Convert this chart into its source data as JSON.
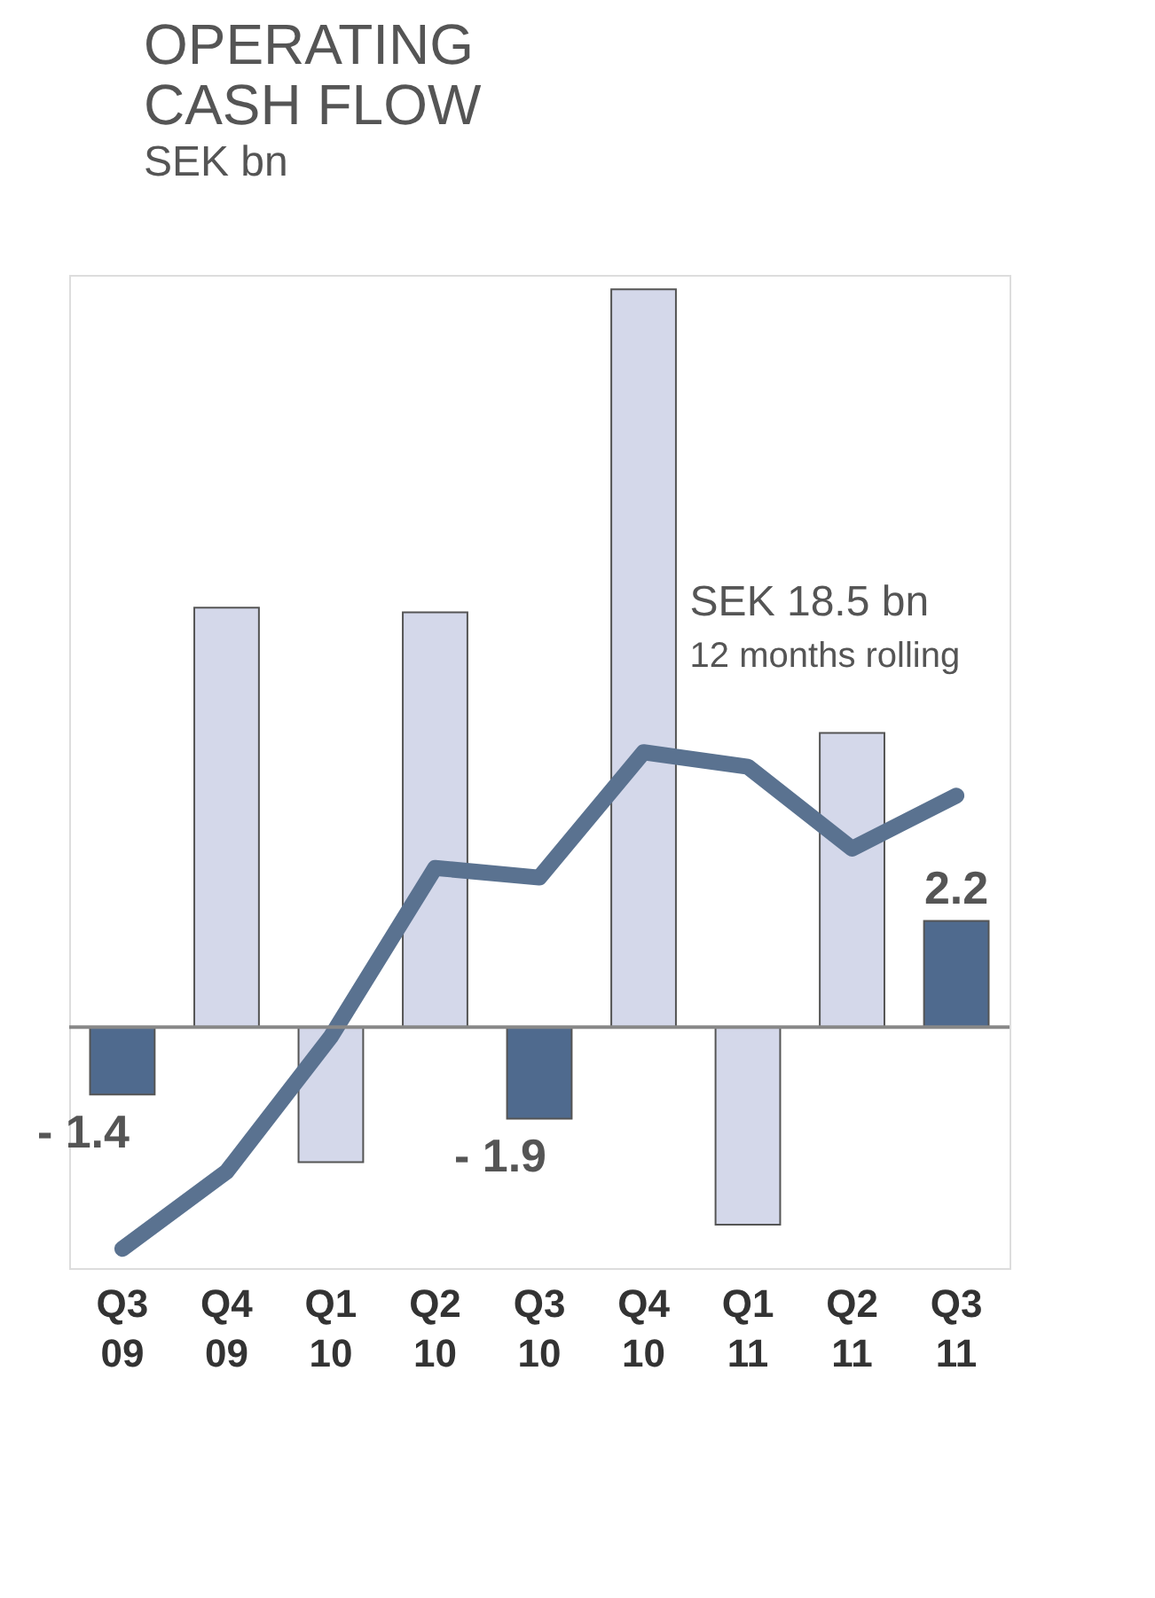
{
  "chart_data": {
    "type": "bar",
    "title": "OPERATING CASH FLOW",
    "subtitle": "SEK bn",
    "categories": [
      "Q3 09",
      "Q4 09",
      "Q1 10",
      "Q2 10",
      "Q3 10",
      "Q4 10",
      "Q1 11",
      "Q2 11",
      "Q3 11"
    ],
    "series": [
      {
        "values": [
          -1.4,
          8.7,
          -2.8,
          8.6,
          -1.9,
          15.3,
          -4.1,
          6.1,
          2.2
        ],
        "colors": [
          "#4f6a8e",
          "#d4d8ea",
          "#d4d8ea",
          "#d4d8ea",
          "#4f6a8e",
          "#d4d8ea",
          "#d4d8ea",
          "#d4d8ea",
          "#4f6a8e"
        ],
        "value_labels": [
          "- 1.4",
          null,
          null,
          null,
          "- 1.9",
          null,
          null,
          null,
          "2.2"
        ]
      },
      {
        "type": "line",
        "color": "#5a7290",
        "values": [
          -4.6,
          -3.0,
          -0.2,
          3.3,
          3.1,
          5.7,
          5.4,
          3.7,
          4.8
        ]
      }
    ],
    "annotations": [
      "SEK 18.5 bn",
      "12 months rolling"
    ],
    "ylim": [
      -5.0,
      15.6
    ]
  }
}
